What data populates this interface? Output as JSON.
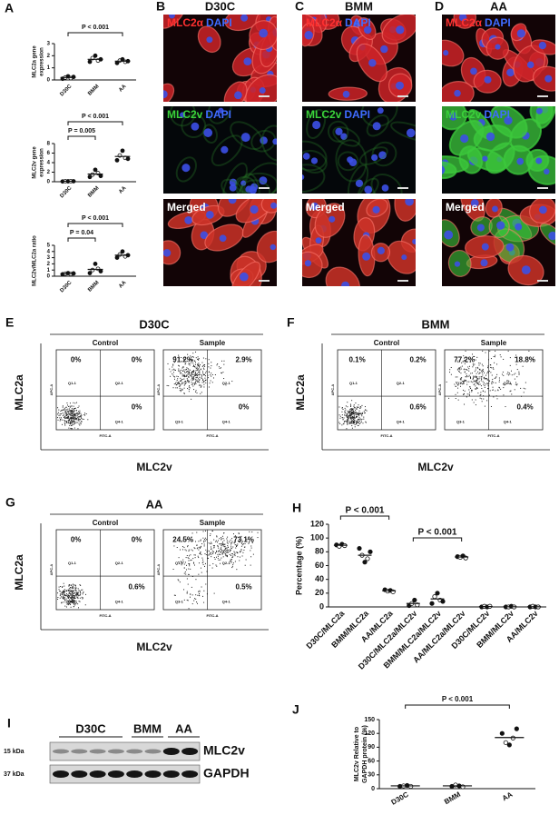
{
  "panel_a": {
    "label": "A",
    "charts": [
      {
        "ylabel_lines": [
          "MLC2a gene",
          "expression"
        ],
        "categories": [
          "D30C",
          "BMM",
          "AA"
        ],
        "ylim": [
          0,
          3
        ],
        "yticks": [
          0,
          1,
          2,
          3
        ],
        "groups": [
          [
            0.1,
            0.2,
            0.3,
            0.15,
            0.25
          ],
          [
            1.5,
            1.8,
            2.0,
            1.6,
            1.7
          ],
          [
            1.4,
            1.6,
            1.7,
            1.5,
            1.55
          ]
        ],
        "means": [
          0.2,
          1.7,
          1.55
        ],
        "comparisons": [
          "P < 0.001"
        ]
      },
      {
        "ylabel_lines": [
          "MLC2v gene",
          "expression"
        ],
        "categories": [
          "D30C",
          "BMM",
          "AA"
        ],
        "ylim": [
          0,
          8
        ],
        "yticks": [
          0,
          2,
          4,
          6,
          8
        ],
        "groups": [
          [
            0.05,
            0.1,
            0.08,
            0.12,
            0.1
          ],
          [
            1.0,
            1.5,
            2.5,
            1.8,
            1.2
          ],
          [
            4.5,
            5.5,
            6.5,
            5.0,
            4.8
          ]
        ],
        "means": [
          0.09,
          1.6,
          5.3
        ],
        "comparisons": [
          "P < 0.001",
          "P = 0.005"
        ]
      },
      {
        "ylabel_lines": [
          "MLC2v/MLC2a ratio"
        ],
        "categories": [
          "D30C",
          "BMM",
          "AA"
        ],
        "ylim": [
          0,
          5
        ],
        "yticks": [
          0,
          1,
          2,
          3,
          4,
          5
        ],
        "groups": [
          [
            0.3,
            0.4,
            0.5,
            0.35,
            0.45
          ],
          [
            0.5,
            1.0,
            2.0,
            1.2,
            0.8
          ],
          [
            3.0,
            3.5,
            4.0,
            3.2,
            3.4
          ]
        ],
        "means": [
          0.4,
          1.1,
          3.4
        ],
        "comparisons": [
          "P < 0.001",
          "P = 0.04"
        ]
      }
    ]
  },
  "micrographs": {
    "panels": [
      {
        "label": "B",
        "condition": "D30C"
      },
      {
        "label": "C",
        "condition": "BMM"
      },
      {
        "label": "D",
        "condition": "AA"
      }
    ],
    "rows": [
      [
        "MLC2α",
        "DAPI"
      ],
      [
        "MLC2v",
        "DAPI"
      ],
      [
        "Merged"
      ]
    ]
  },
  "flow": {
    "ylabel": "MLC2a",
    "xlabel": "MLC2v",
    "control_label": "Control",
    "sample_label": "Sample",
    "y_channel": "APC-A",
    "x_channel": "FITC-A",
    "gates": [
      "Q1-1",
      "Q2-1",
      "Q3-1",
      "Q4-1"
    ],
    "panels": [
      {
        "label": "E",
        "title": "D30C",
        "control": [
          "0%",
          "0%",
          "0%"
        ],
        "sample": [
          "91.2%",
          "2.9%",
          "0%"
        ]
      },
      {
        "label": "F",
        "title": "BMM",
        "control": [
          "0.1%",
          "0.2%",
          "0.6%"
        ],
        "sample": [
          "77.2%",
          "18.8%",
          "0.4%"
        ]
      },
      {
        "label": "G",
        "title": "AA",
        "control": [
          "0%",
          "0%",
          "0.6%"
        ],
        "sample": [
          "24.5%",
          "73.1%",
          "0.5%"
        ]
      }
    ]
  },
  "panel_h": {
    "label": "H",
    "ylabel_lines": [
      "Percentage (%)"
    ],
    "categories": [
      "D30C/MLC2a",
      "BMM/MLC2a",
      "AA/MLC2a",
      "D30C/MLC2a/MLC2v",
      "BMM/MLC2a/MLC2v",
      "AA/MLC2a/MLC2v",
      "D30C/MLC2v",
      "BMM/MLC2v",
      "AA/MLC2v"
    ],
    "ylim": [
      0,
      120
    ],
    "yticks": [
      0,
      20,
      40,
      60,
      80,
      100,
      120
    ],
    "groups": [
      [
        90,
        88,
        91,
        89
      ],
      [
        85,
        75,
        65,
        70,
        80
      ],
      [
        25,
        23,
        24,
        22
      ],
      [
        2,
        5,
        10,
        3
      ],
      [
        5,
        15,
        20,
        10,
        8
      ],
      [
        73,
        72,
        74,
        71
      ],
      [
        0,
        1,
        0,
        1
      ],
      [
        0,
        0,
        1,
        0
      ],
      [
        0,
        1,
        0,
        0
      ]
    ],
    "means": [
      89.5,
      75,
      23.5,
      5,
      11.6,
      72.5,
      0.5,
      0.25,
      0.25
    ],
    "comparisons": [
      "P < 0.001",
      "P < 0.001"
    ]
  },
  "blot": {
    "label": "I",
    "lanes": [
      "D30C",
      "BMM",
      "AA"
    ],
    "markers": [
      "15 kDa",
      "37 kDa"
    ],
    "proteins": [
      "MLC2v",
      "GAPDH"
    ]
  },
  "panel_j": {
    "label": "J",
    "ylabel_lines": [
      "MLC2v Relative to",
      "GAPDH protein (%)"
    ],
    "categories": [
      "D30C",
      "BMM",
      "AA"
    ],
    "ylim": [
      0,
      150
    ],
    "yticks": [
      0,
      30,
      60,
      90,
      120,
      150
    ],
    "groups": [
      [
        5,
        6,
        7,
        5
      ],
      [
        5,
        8,
        6,
        4
      ],
      [
        120,
        100,
        95,
        110,
        130
      ]
    ],
    "means": [
      6,
      6,
      111
    ],
    "comparisons": [
      "P < 0.001"
    ]
  }
}
